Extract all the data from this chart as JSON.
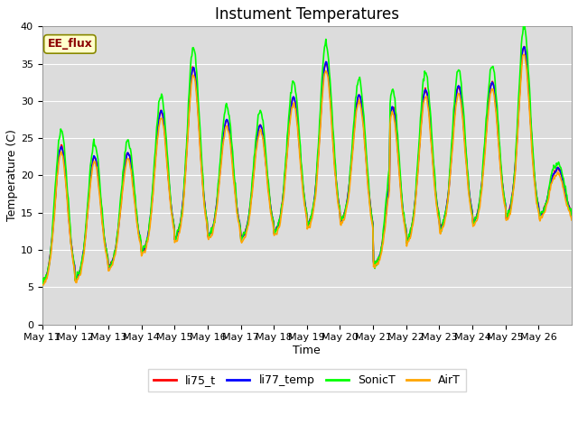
{
  "title": "Instument Temperatures",
  "xlabel": "Time",
  "ylabel": "Temperature (C)",
  "ylim": [
    0,
    40
  ],
  "annotation": "EE_flux",
  "bg_color": "#dcdcdc",
  "series": [
    "li75_t",
    "li77_temp",
    "SonicT",
    "AirT"
  ],
  "colors": [
    "red",
    "blue",
    "#00ff00",
    "orange"
  ],
  "linewidths": [
    1.2,
    1.2,
    1.2,
    1.2
  ],
  "xtick_labels": [
    "May 11",
    "May 12",
    "May 13",
    "May 14",
    "May 15",
    "May 16",
    "May 17",
    "May 18",
    "May 19",
    "May 20",
    "May 21",
    "May 22",
    "May 23",
    "May 24",
    "May 25",
    "May 26"
  ],
  "ytick_vals": [
    0,
    5,
    10,
    15,
    20,
    25,
    30,
    35,
    40
  ],
  "title_fontsize": 12,
  "axis_fontsize": 9,
  "tick_fontsize": 8
}
